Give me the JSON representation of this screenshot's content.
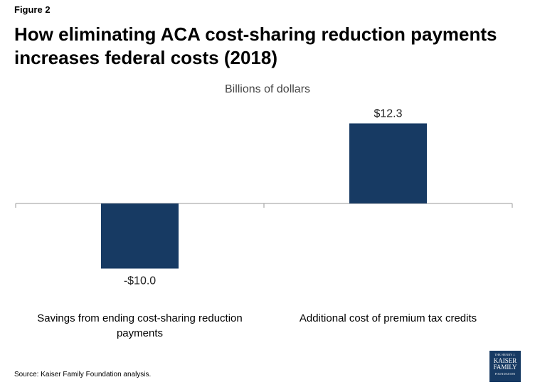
{
  "figure_label": "Figure 2",
  "title": "How eliminating ACA cost-sharing reduction payments increases federal costs (2018)",
  "source": "Source: Kaiser Family Foundation analysis.",
  "logo": {
    "line1": "THE HENRY J.",
    "line2": "KAISER",
    "line3": "FAMILY",
    "line4": "FOUNDATION"
  },
  "colors": {
    "bar": "#173a63",
    "axis": "#9a9a9a"
  },
  "chart_data": {
    "type": "bar",
    "subtitle": "Billions of dollars",
    "categories": [
      "Savings from ending cost-sharing reduction payments",
      "Additional cost of premium tax credits"
    ],
    "values": [
      -10.0,
      12.3
    ],
    "data_labels": [
      "-$10.0",
      "$12.3"
    ],
    "ylim": [
      -10.0,
      12.3
    ],
    "grid": false,
    "legend": "none"
  }
}
